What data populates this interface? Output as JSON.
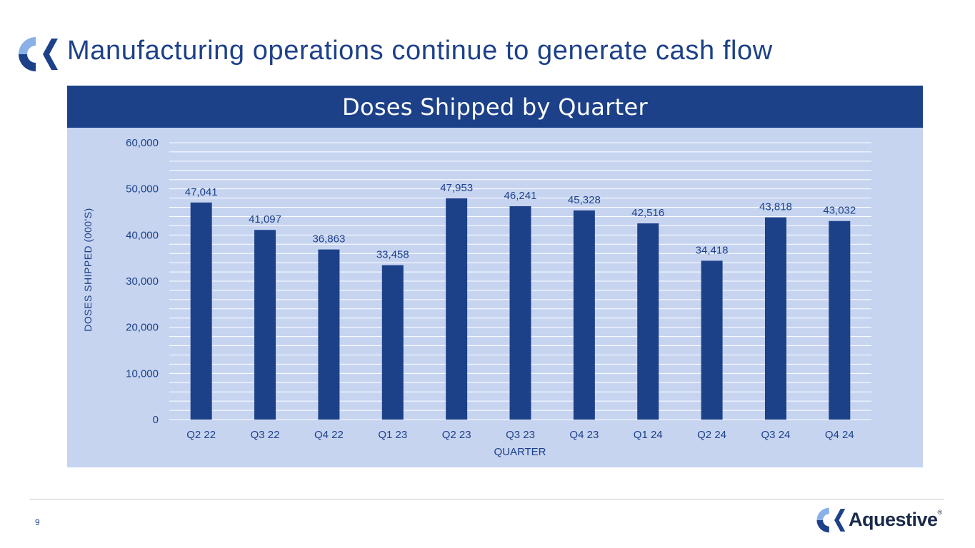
{
  "slide": {
    "title": "Manufacturing operations continue to generate cash flow",
    "page_number": "9"
  },
  "brand": {
    "logo_icon": "aquestive-logo-icon",
    "name": "Aquestive",
    "registered": "®",
    "primary_color": "#1d4189",
    "light_color": "#8ab0e8",
    "panel_color": "#c6d4f0"
  },
  "chart_data": {
    "type": "bar",
    "title": "Doses Shipped by Quarter",
    "xlabel": "QUARTER",
    "ylabel": "DOSES SHIPPED (000'S)",
    "categories": [
      "Q2 22",
      "Q3 22",
      "Q4 22",
      "Q1 23",
      "Q2 23",
      "Q3 23",
      "Q4 23",
      "Q1 24",
      "Q2 24",
      "Q3 24",
      "Q4 24"
    ],
    "values": [
      47041,
      41097,
      36863,
      33458,
      47953,
      46241,
      45328,
      42516,
      34418,
      43818,
      43032
    ],
    "value_labels": [
      "47,041",
      "41,097",
      "36,863",
      "33,458",
      "47,953",
      "46,241",
      "45,328",
      "42,516",
      "34,418",
      "43,818",
      "43,032"
    ],
    "yticks": [
      0,
      10000,
      20000,
      30000,
      40000,
      50000,
      60000
    ],
    "ytick_labels": [
      "0",
      "10,000",
      "20,000",
      "30,000",
      "40,000",
      "50,000",
      "60,000"
    ],
    "ylim": [
      0,
      60000
    ],
    "minor_grid_step": 2000,
    "grid": true,
    "bar_color": "#1d4189",
    "grid_color": "#ffffff"
  }
}
